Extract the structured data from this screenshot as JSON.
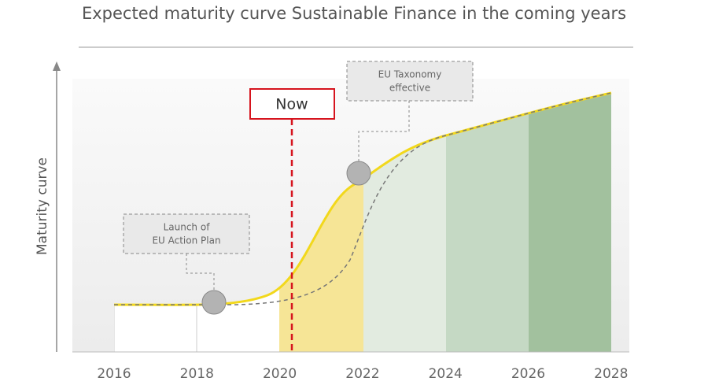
{
  "title": "Expected maturity curve Sustainable Finance in the coming years",
  "y_axis_label": "Maturity curve",
  "x_labels": [
    "2016",
    "2018",
    "2020",
    "2022",
    "2024",
    "2026",
    "2028"
  ],
  "annotations": {
    "now": "Now",
    "launch": [
      "Launch of",
      "EU Action Plan"
    ],
    "taxonomy": [
      "EU Taxonomy",
      "effective"
    ]
  }
}
